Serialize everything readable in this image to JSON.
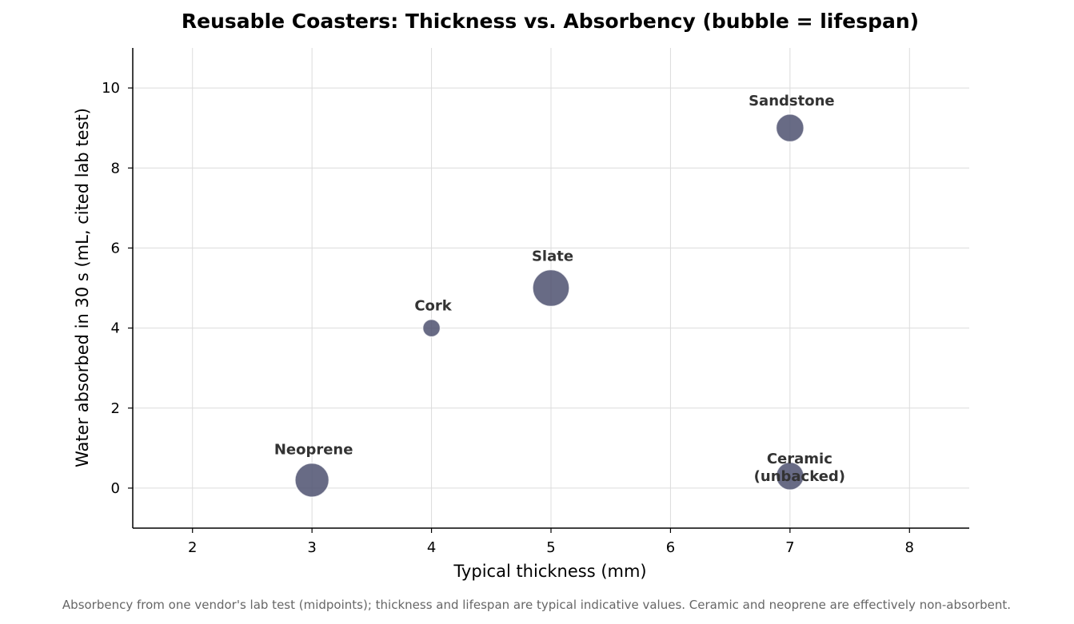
{
  "chart_data": {
    "type": "scatter",
    "title": "Reusable Coasters: Thickness vs. Absorbency (bubble = lifespan)",
    "xlabel": "Typical thickness (mm)",
    "ylabel": "Water absorbed in 30 s (mL, cited lab test)",
    "xlim": [
      1.5,
      8.5
    ],
    "ylim": [
      -1,
      11
    ],
    "xticks": [
      2,
      3,
      4,
      5,
      6,
      7,
      8
    ],
    "yticks": [
      0,
      2,
      4,
      6,
      8,
      10
    ],
    "grid": true,
    "points": [
      {
        "label": "Neoprene",
        "x": 3,
        "y": 0.2,
        "size": 3.0
      },
      {
        "label": "Cork",
        "x": 4,
        "y": 4,
        "size": 0.8
      },
      {
        "label": "Slate",
        "x": 5,
        "y": 5,
        "size": 3.5
      },
      {
        "label": "Sandstone",
        "x": 7,
        "y": 9,
        "size": 2.0
      },
      {
        "label": "Ceramic\n(unbacked)",
        "x": 7,
        "y": 0.3,
        "size": 2.0
      }
    ],
    "colors": {
      "bubble": "#4d5170",
      "bubble_edge": "#ffffff"
    },
    "footnote": "Absorbency from one vendor's lab test (midpoints); thickness and lifespan are typical indicative values. Ceramic and neoprene are effectively non-absorbent."
  }
}
